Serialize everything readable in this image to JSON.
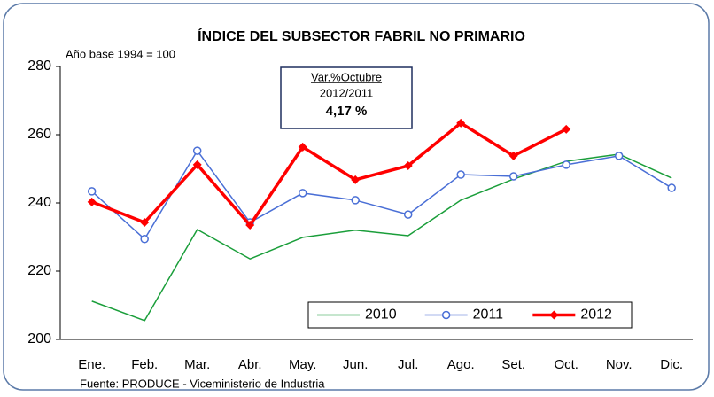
{
  "chart_data": {
    "type": "line",
    "title": "ÍNDICE DEL SUBSECTOR FABRIL NO PRIMARIO",
    "subtitle": "Año base 1994 = 100",
    "source": "Fuente: PRODUCE - Viceministerio de Industria",
    "annotation": {
      "line1": "Var.%Octubre",
      "line2": "2012/2011",
      "value": "4,17 %"
    },
    "categories": [
      "Ene.",
      "Feb.",
      "Mar.",
      "Abr.",
      "May.",
      "Jun.",
      "Jul.",
      "Ago.",
      "Set.",
      "Oct.",
      "Nov.",
      "Dic."
    ],
    "series": [
      {
        "name": "2010",
        "color": "#1a9e3a",
        "marker": "none",
        "values": [
          211.2,
          205.5,
          232.2,
          223.6,
          229.9,
          232.0,
          230.4,
          240.8,
          247.0,
          252.2,
          254.3,
          247.3
        ]
      },
      {
        "name": "2011",
        "color": "#4a6fd6",
        "marker": "circle",
        "values": [
          243.4,
          229.4,
          255.3,
          234.3,
          242.9,
          240.8,
          236.6,
          248.3,
          247.8,
          251.2,
          253.8,
          244.4
        ]
      },
      {
        "name": "2012",
        "color": "#ff0000",
        "marker": "diamond",
        "values": [
          240.3,
          234.3,
          251.2,
          233.5,
          256.4,
          246.8,
          250.9,
          263.4,
          253.8,
          261.6,
          null,
          null
        ]
      }
    ],
    "ylim": [
      200,
      280
    ],
    "yticks": [
      200,
      220,
      240,
      260,
      280
    ],
    "grid": false,
    "legend": "bottom-right"
  }
}
